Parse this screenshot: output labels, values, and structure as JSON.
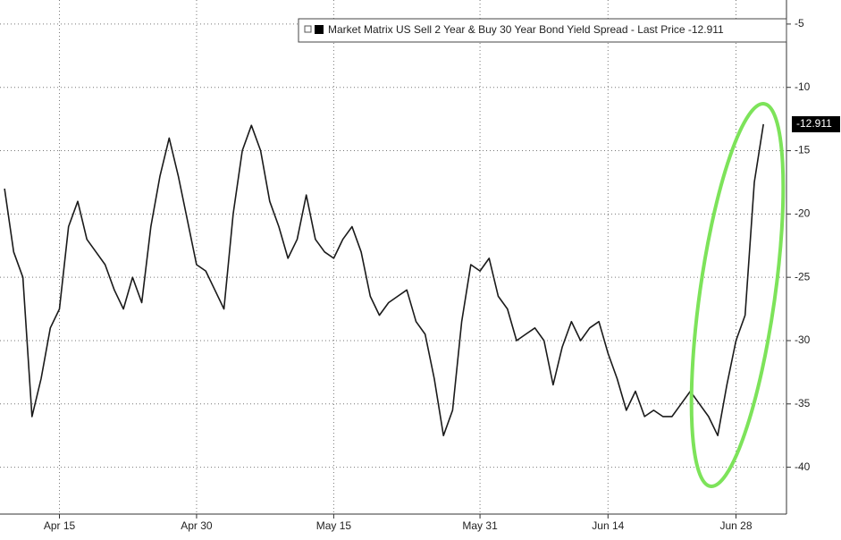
{
  "chart_data": {
    "type": "line",
    "categories": [
      null,
      null,
      null,
      null,
      null,
      null,
      "Apr 15",
      null,
      null,
      null,
      null,
      null,
      null,
      null,
      null,
      null,
      null,
      null,
      null,
      null,
      null,
      "Apr 30",
      null,
      null,
      null,
      null,
      null,
      null,
      null,
      null,
      null,
      null,
      null,
      null,
      null,
      null,
      "May 15",
      null,
      null,
      null,
      null,
      null,
      null,
      null,
      null,
      null,
      null,
      null,
      null,
      null,
      null,
      null,
      "May 31",
      null,
      null,
      null,
      null,
      null,
      null,
      null,
      null,
      null,
      null,
      null,
      null,
      null,
      "Jun 14",
      null,
      null,
      null,
      null,
      null,
      null,
      null,
      null,
      null,
      null,
      null,
      null,
      null,
      "Jun 28",
      null,
      null,
      null
    ],
    "series": [
      {
        "name": "Market Matrix US Sell 2 Year & Buy 30 Year Bond Yield Spread - Last Price -12.911",
        "color": "#1a1a1a",
        "values": [
          -18,
          -23,
          -25,
          -36,
          -33,
          -29,
          -27.5,
          -21,
          -19,
          -22,
          -23,
          -24,
          -26,
          -27.5,
          -25,
          -27,
          -21,
          -17,
          -14,
          -17,
          -20.5,
          -24,
          -24.5,
          -26,
          -27.5,
          -20,
          -15,
          -13,
          -15,
          -19,
          -21,
          -23.5,
          -22,
          -18.5,
          -22,
          -23,
          -23.5,
          -22,
          -21,
          -23,
          -26.5,
          -28,
          -27,
          -26.5,
          -26,
          -28.5,
          -29.5,
          -33,
          -37.5,
          -35.5,
          -28.5,
          -24,
          -24.5,
          -23.5,
          -26.5,
          -27.5,
          -30,
          -29.5,
          -29,
          -30,
          -33.5,
          -30.5,
          -28.5,
          -30,
          -29,
          -28.5,
          -31,
          -33,
          -35.5,
          -34,
          -36,
          -35.5,
          -36,
          -36,
          -35,
          -34,
          -35,
          -36,
          -37.5,
          -33.5,
          -30,
          -28,
          -17.5,
          -12.911
        ]
      }
    ],
    "ylim": [
      -43.7,
      -3.1
    ],
    "yticks": [
      -5,
      -10,
      -15,
      -20,
      -25,
      -30,
      -35,
      -40
    ],
    "grid": true
  }
}
